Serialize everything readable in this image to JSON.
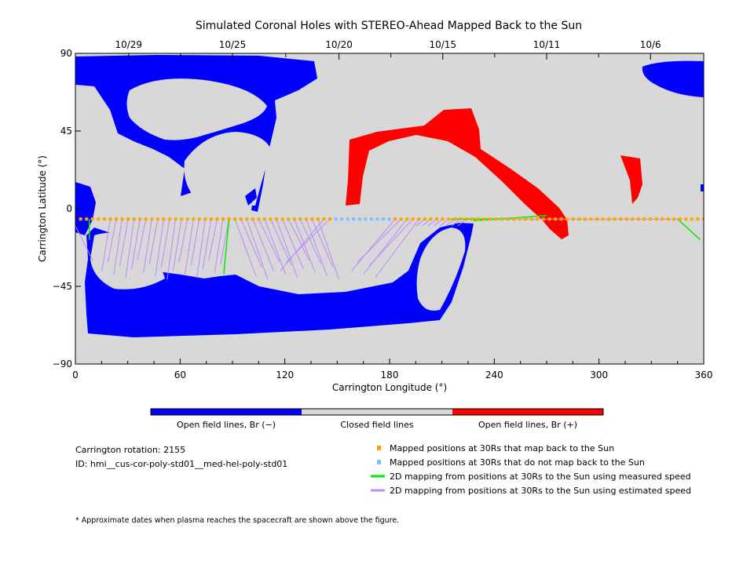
{
  "chart_data": {
    "type": "map",
    "title": "Simulated Coronal Holes with STEREO-Ahead Mapped Back to the Sun",
    "xlabel": "Carrington Longitude (°)",
    "ylabel": "Carrington Latitude (°)",
    "xlim": [
      0,
      360
    ],
    "ylim": [
      -90,
      90
    ],
    "xticks": [
      0,
      60,
      120,
      180,
      240,
      300,
      360
    ],
    "yticks": [
      90,
      45,
      0,
      -45,
      -90
    ],
    "ytick_labels": [
      "90",
      "45",
      "0",
      "−45",
      "−90"
    ],
    "top_axis_dates": [
      {
        "label": "10/29",
        "lon": 30.5
      },
      {
        "label": "10/25",
        "lon": 90
      },
      {
        "label": "10/20",
        "lon": 151
      },
      {
        "label": "10/15",
        "lon": 210.5
      },
      {
        "label": "10/11",
        "lon": 270
      },
      {
        "label": "10/6",
        "lon": 329.5
      }
    ],
    "mapped_positions_lat": -6,
    "mapped_positions_lon_step": 3.4,
    "unmapped_lon_range": [
      146,
      182
    ],
    "colorbar": [
      {
        "label": "Open field lines, Br (−)",
        "color": "#0000ff"
      },
      {
        "label": "Closed field lines",
        "color": "#d8d8d8"
      },
      {
        "label": "Open field lines, Br (+)",
        "color": "#ff0000"
      }
    ],
    "legend": [
      {
        "label": "Mapped positions at 30Rs that map back to the Sun",
        "color": "#ffa500",
        "marker": "square"
      },
      {
        "label": "Mapped positions at 30Rs that do not map back to the Sun",
        "color": "#7fbfff",
        "marker": "square"
      },
      {
        "label": "2D mapping from positions at 30Rs to the Sun using measured speed",
        "color": "#00ee00",
        "marker": "line"
      },
      {
        "label": "2D mapping from positions at 30Rs to the Sun using estimated speed",
        "color": "#bb88ff",
        "marker": "line"
      }
    ],
    "green_lines": [
      [
        0,
        -6,
        -3,
        -20
      ],
      [
        8,
        -6,
        8,
        -18
      ],
      [
        88,
        -6,
        85,
        -38
      ],
      [
        215,
        -6,
        240,
        -6
      ],
      [
        270,
        -4,
        228,
        -7
      ],
      [
        345,
        -6,
        358,
        -18
      ]
    ],
    "purple_footpoints_lat": [
      -30,
      -42
    ]
  },
  "info": {
    "rotation": "Carrington rotation: 2155",
    "id": "ID: hmi__cus-cor-poly-std01__med-hel-poly-std01",
    "footnote": "* Approximate dates when plasma reaches the spacecraft are shown above the figure."
  }
}
